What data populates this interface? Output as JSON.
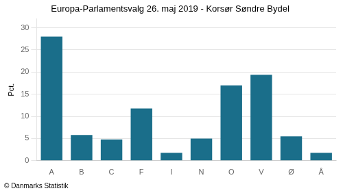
{
  "chart_data": {
    "type": "bar",
    "title": "Europa-Parlamentsvalg 26. maj 2019 - Korsør Søndre Bydel",
    "ylabel": "Pct.",
    "footer": "© Danmarks Statistik",
    "categories": [
      "A",
      "B",
      "C",
      "F",
      "I",
      "N",
      "O",
      "V",
      "Ø",
      "Å"
    ],
    "values": [
      28.0,
      5.8,
      4.8,
      11.8,
      1.8,
      5.0,
      17.0,
      19.4,
      5.5,
      1.8
    ],
    "color": "#1a6e8a",
    "ylim": [
      0,
      32
    ],
    "yticks": [
      0,
      5,
      10,
      15,
      20,
      25,
      30
    ],
    "grid": true,
    "legend": false
  }
}
